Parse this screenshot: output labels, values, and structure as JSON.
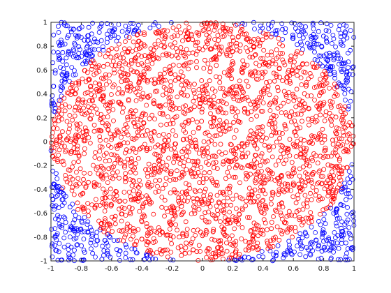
{
  "chart_data": {
    "type": "scatter",
    "title": "",
    "xlabel": "",
    "ylabel": "",
    "xlim": [
      -1,
      1
    ],
    "ylim": [
      -1,
      1
    ],
    "x_ticks": [
      -1,
      -0.8,
      -0.6,
      -0.4,
      -0.2,
      0,
      0.2,
      0.4,
      0.6,
      0.8,
      1
    ],
    "y_ticks": [
      -1,
      -0.8,
      -0.6,
      -0.4,
      -0.2,
      0,
      0.2,
      0.4,
      0.6,
      0.8,
      1
    ],
    "x_tick_labels": [
      "-1",
      "-0.8",
      "-0.6",
      "-0.4",
      "-0.2",
      "0",
      "0.2",
      "0.4",
      "0.6",
      "0.8",
      "1"
    ],
    "y_tick_labels": [
      "-1",
      "-0.8",
      "-0.6",
      "-0.4",
      "-0.2",
      "0",
      "0.2",
      "0.4",
      "0.6",
      "0.8",
      "1"
    ],
    "grid": false,
    "legend": "none",
    "marker": "circle-open",
    "num_points": 3000,
    "series": [
      {
        "points": "inside unit circle (x^2 + y^2 <= 1)",
        "color": "#ff0000"
      },
      {
        "points": "outside unit circle (x^2 + y^2 > 1)",
        "color": "#0000ff"
      }
    ]
  }
}
